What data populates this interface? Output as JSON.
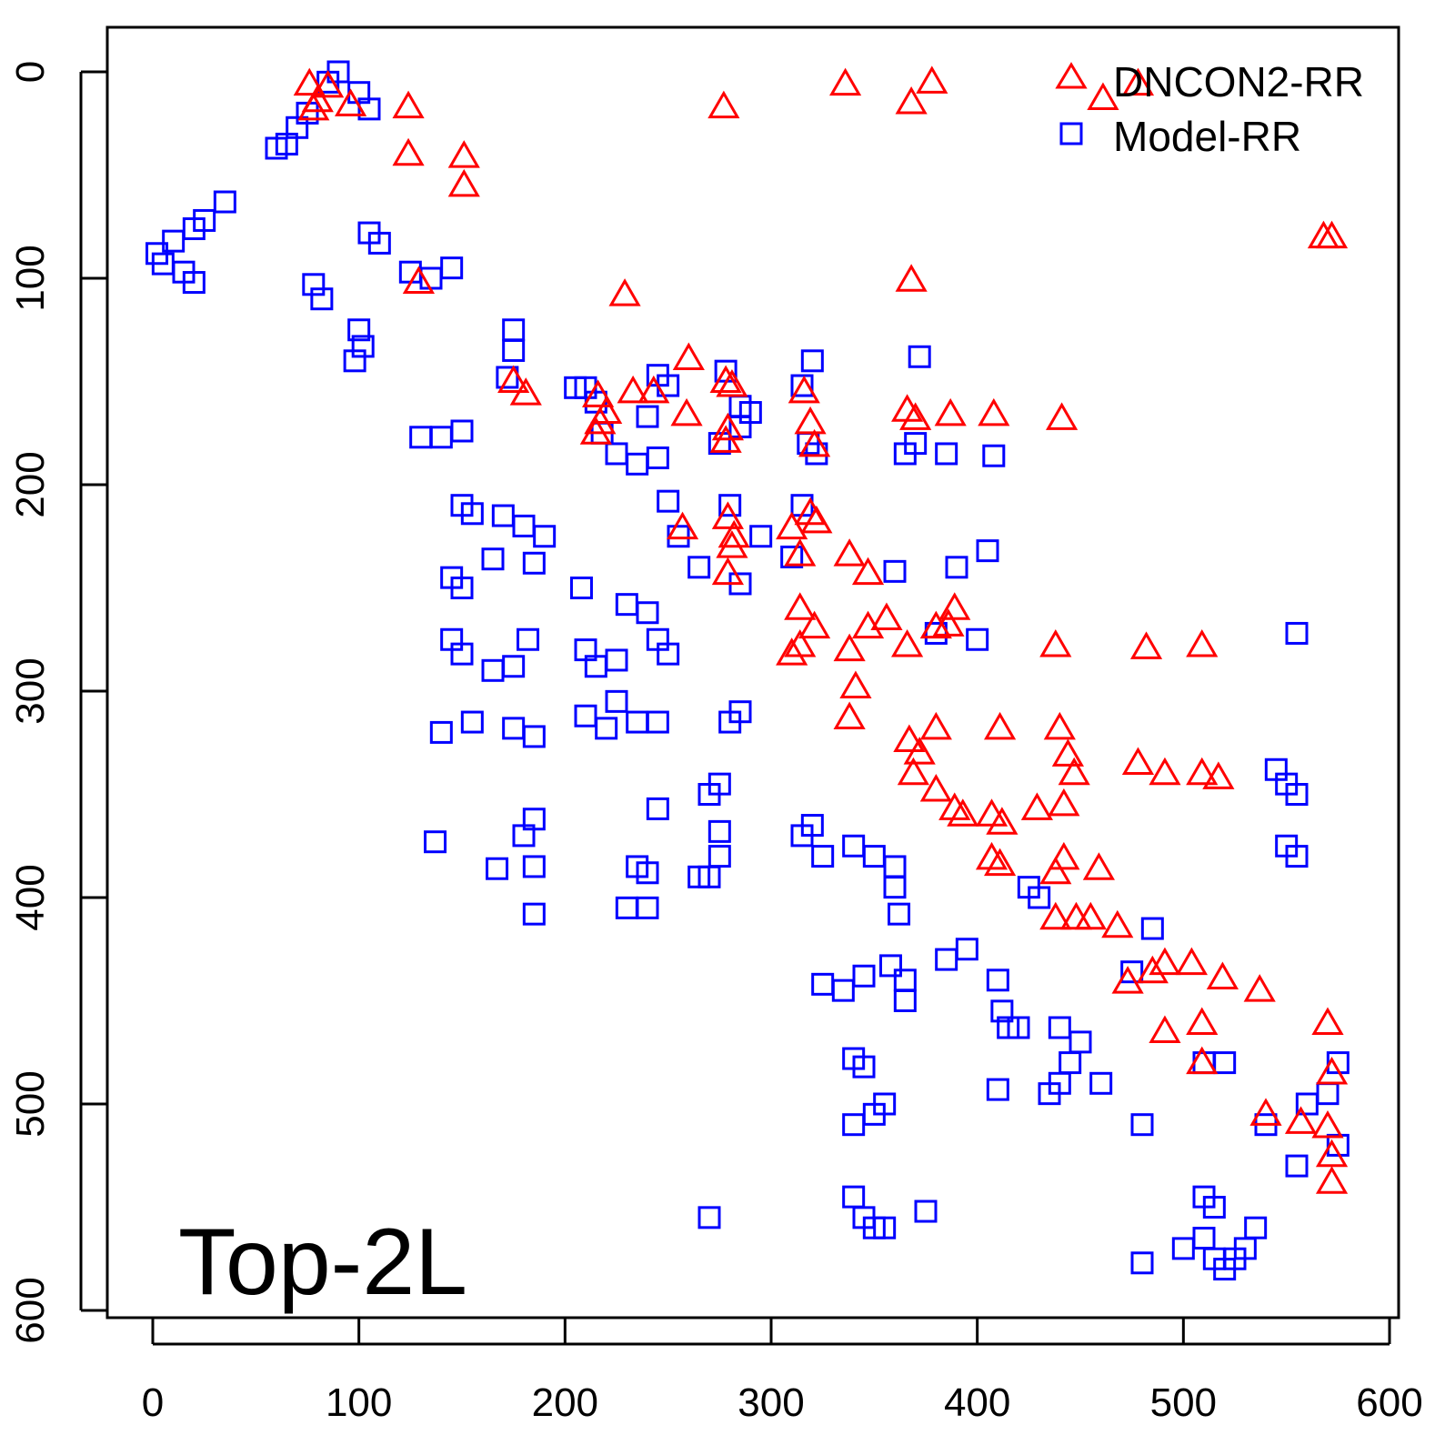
{
  "chart_data": {
    "type": "scatter",
    "title": "",
    "annotation": "Top-2L",
    "xlabel": "",
    "ylabel": "",
    "xlim": [
      -22,
      605
    ],
    "ylim": [
      600,
      -22
    ],
    "y_inverted": true,
    "grid": false,
    "legend_position": "top-right",
    "x_ticks": [
      "0",
      "100",
      "200",
      "300",
      "400",
      "500",
      "600"
    ],
    "y_ticks": [
      "0",
      "100",
      "200",
      "300",
      "400",
      "500",
      "600"
    ],
    "colors": {
      "DNCON2-RR": "#ff0000",
      "Model-RR": "#0000ff"
    },
    "series": [
      {
        "name": "DNCON2-RR",
        "marker": "triangle",
        "points": [
          [
            76,
            6
          ],
          [
            80,
            14
          ],
          [
            85,
            7
          ],
          [
            96,
            16
          ],
          [
            78,
            18
          ],
          [
            124,
            17
          ],
          [
            124,
            40
          ],
          [
            151,
            41
          ],
          [
            151,
            55
          ],
          [
            129,
            102
          ],
          [
            229,
            108
          ],
          [
            277,
            17
          ],
          [
            336,
            6
          ],
          [
            368,
            15
          ],
          [
            378,
            5
          ],
          [
            461,
            13
          ],
          [
            478,
            6
          ],
          [
            572,
            80
          ],
          [
            568,
            80
          ],
          [
            368,
            101
          ],
          [
            175,
            150
          ],
          [
            181,
            156
          ],
          [
            216,
            157
          ],
          [
            217,
            170
          ],
          [
            220,
            165
          ],
          [
            215,
            175
          ],
          [
            233,
            155
          ],
          [
            243,
            155
          ],
          [
            259,
            166
          ],
          [
            260,
            139
          ],
          [
            281,
            152
          ],
          [
            278,
            150
          ],
          [
            279,
            173
          ],
          [
            278,
            179
          ],
          [
            316,
            155
          ],
          [
            319,
            170
          ],
          [
            321,
            181
          ],
          [
            366,
            164
          ],
          [
            370,
            168
          ],
          [
            387,
            166
          ],
          [
            408,
            166
          ],
          [
            441,
            168
          ],
          [
            257,
            221
          ],
          [
            279,
            216
          ],
          [
            281,
            230
          ],
          [
            279,
            243
          ],
          [
            282,
            225
          ],
          [
            310,
            221
          ],
          [
            319,
            214
          ],
          [
            314,
            234
          ],
          [
            322,
            218
          ],
          [
            338,
            234
          ],
          [
            347,
            243
          ],
          [
            314,
            260
          ],
          [
            314,
            278
          ],
          [
            321,
            269
          ],
          [
            310,
            282
          ],
          [
            338,
            280
          ],
          [
            341,
            298
          ],
          [
            338,
            313
          ],
          [
            347,
            269
          ],
          [
            356,
            265
          ],
          [
            366,
            278
          ],
          [
            380,
            269
          ],
          [
            389,
            260
          ],
          [
            386,
            268
          ],
          [
            438,
            278
          ],
          [
            482,
            279
          ],
          [
            509,
            278
          ],
          [
            367,
            324
          ],
          [
            369,
            340
          ],
          [
            372,
            330
          ],
          [
            380,
            318
          ],
          [
            380,
            348
          ],
          [
            389,
            357
          ],
          [
            393,
            360
          ],
          [
            411,
            318
          ],
          [
            407,
            360
          ],
          [
            412,
            364
          ],
          [
            407,
            381
          ],
          [
            411,
            384
          ],
          [
            429,
            357
          ],
          [
            440,
            318
          ],
          [
            444,
            331
          ],
          [
            442,
            355
          ],
          [
            447,
            340
          ],
          [
            442,
            381
          ],
          [
            438,
            388
          ],
          [
            459,
            386
          ],
          [
            438,
            410
          ],
          [
            448,
            410
          ],
          [
            455,
            410
          ],
          [
            468,
            414
          ],
          [
            478,
            335
          ],
          [
            491,
            340
          ],
          [
            509,
            340
          ],
          [
            517,
            342
          ],
          [
            473,
            441
          ],
          [
            485,
            436
          ],
          [
            491,
            432
          ],
          [
            504,
            432
          ],
          [
            519,
            439
          ],
          [
            537,
            445
          ],
          [
            491,
            465
          ],
          [
            509,
            461
          ],
          [
            509,
            480
          ],
          [
            570,
            461
          ],
          [
            572,
            485
          ],
          [
            540,
            505
          ],
          [
            557,
            509
          ],
          [
            570,
            511
          ],
          [
            572,
            525
          ],
          [
            572,
            538
          ]
        ]
      },
      {
        "name": "Model-RR",
        "marker": "square",
        "points": [
          [
            90,
            0
          ],
          [
            85,
            5
          ],
          [
            100,
            10
          ],
          [
            105,
            18
          ],
          [
            75,
            20
          ],
          [
            70,
            27
          ],
          [
            65,
            35
          ],
          [
            60,
            37
          ],
          [
            35,
            63
          ],
          [
            25,
            72
          ],
          [
            20,
            76
          ],
          [
            10,
            82
          ],
          [
            2,
            88
          ],
          [
            5,
            93
          ],
          [
            15,
            97
          ],
          [
            20,
            102
          ],
          [
            105,
            78
          ],
          [
            110,
            83
          ],
          [
            78,
            103
          ],
          [
            82,
            110
          ],
          [
            100,
            125
          ],
          [
            102,
            133
          ],
          [
            98,
            140
          ],
          [
            125,
            97
          ],
          [
            135,
            100
          ],
          [
            145,
            95
          ],
          [
            175,
            125
          ],
          [
            175,
            135
          ],
          [
            172,
            148
          ],
          [
            210,
            153
          ],
          [
            215,
            160
          ],
          [
            218,
            175
          ],
          [
            225,
            185
          ],
          [
            235,
            190
          ],
          [
            245,
            187
          ],
          [
            240,
            167
          ],
          [
            245,
            147
          ],
          [
            250,
            152
          ],
          [
            278,
            145
          ],
          [
            290,
            165
          ],
          [
            285,
            172
          ],
          [
            275,
            180
          ],
          [
            320,
            140
          ],
          [
            315,
            152
          ],
          [
            318,
            180
          ],
          [
            322,
            185
          ],
          [
            365,
            185
          ],
          [
            370,
            180
          ],
          [
            372,
            138
          ],
          [
            385,
            185
          ],
          [
            408,
            186
          ],
          [
            130,
            177
          ],
          [
            140,
            177
          ],
          [
            150,
            174
          ],
          [
            150,
            210
          ],
          [
            155,
            214
          ],
          [
            170,
            215
          ],
          [
            180,
            220
          ],
          [
            190,
            225
          ],
          [
            185,
            238
          ],
          [
            165,
            236
          ],
          [
            145,
            245
          ],
          [
            150,
            250
          ],
          [
            145,
            275
          ],
          [
            150,
            282
          ],
          [
            165,
            290
          ],
          [
            175,
            288
          ],
          [
            182,
            275
          ],
          [
            175,
            318
          ],
          [
            185,
            322
          ],
          [
            155,
            315
          ],
          [
            140,
            320
          ],
          [
            250,
            208
          ],
          [
            255,
            225
          ],
          [
            265,
            240
          ],
          [
            280,
            210
          ],
          [
            285,
            248
          ],
          [
            295,
            225
          ],
          [
            315,
            210
          ],
          [
            310,
            235
          ],
          [
            208,
            250
          ],
          [
            210,
            280
          ],
          [
            215,
            288
          ],
          [
            225,
            285
          ],
          [
            230,
            258
          ],
          [
            240,
            262
          ],
          [
            245,
            275
          ],
          [
            250,
            282
          ],
          [
            210,
            312
          ],
          [
            220,
            318
          ],
          [
            225,
            305
          ],
          [
            235,
            315
          ],
          [
            245,
            315
          ],
          [
            280,
            315
          ],
          [
            285,
            310
          ],
          [
            270,
            350
          ],
          [
            275,
            345
          ],
          [
            245,
            357
          ],
          [
            240,
            388
          ],
          [
            235,
            385
          ],
          [
            230,
            405
          ],
          [
            240,
            405
          ],
          [
            265,
            390
          ],
          [
            275,
            380
          ],
          [
            275,
            368
          ],
          [
            137,
            373
          ],
          [
            167,
            386
          ],
          [
            180,
            370
          ],
          [
            185,
            362
          ],
          [
            185,
            385
          ],
          [
            185,
            408
          ],
          [
            315,
            370
          ],
          [
            320,
            365
          ],
          [
            325,
            380
          ],
          [
            340,
            375
          ],
          [
            350,
            380
          ],
          [
            360,
            385
          ],
          [
            360,
            395
          ],
          [
            362,
            408
          ],
          [
            358,
            433
          ],
          [
            365,
            440
          ],
          [
            365,
            450
          ],
          [
            345,
            438
          ],
          [
            335,
            445
          ],
          [
            325,
            442
          ],
          [
            385,
            430
          ],
          [
            395,
            425
          ],
          [
            400,
            275
          ],
          [
            380,
            272
          ],
          [
            390,
            240
          ],
          [
            405,
            232
          ],
          [
            360,
            242
          ],
          [
            410,
            440
          ],
          [
            412,
            455
          ],
          [
            415,
            463
          ],
          [
            420,
            463
          ],
          [
            410,
            493
          ],
          [
            430,
            400
          ],
          [
            425,
            395
          ],
          [
            440,
            490
          ],
          [
            445,
            480
          ],
          [
            450,
            470
          ],
          [
            435,
            495
          ],
          [
            440,
            463
          ],
          [
            460,
            490
          ],
          [
            475,
            436
          ],
          [
            480,
            510
          ],
          [
            485,
            415
          ],
          [
            510,
            480
          ],
          [
            520,
            480
          ],
          [
            545,
            338
          ],
          [
            550,
            345
          ],
          [
            555,
            350
          ],
          [
            550,
            375
          ],
          [
            555,
            380
          ],
          [
            555,
            272
          ],
          [
            540,
            510
          ],
          [
            560,
            500
          ],
          [
            570,
            495
          ],
          [
            575,
            480
          ],
          [
            575,
            520
          ],
          [
            555,
            530
          ],
          [
            500,
            570
          ],
          [
            510,
            565
          ],
          [
            515,
            575
          ],
          [
            520,
            580
          ],
          [
            525,
            575
          ],
          [
            530,
            570
          ],
          [
            535,
            560
          ],
          [
            510,
            545
          ],
          [
            515,
            550
          ],
          [
            480,
            577
          ],
          [
            340,
            545
          ],
          [
            345,
            555
          ],
          [
            350,
            560
          ],
          [
            355,
            560
          ],
          [
            375,
            552
          ],
          [
            270,
            555
          ],
          [
            340,
            510
          ],
          [
            350,
            505
          ],
          [
            355,
            500
          ],
          [
            340,
            478
          ],
          [
            345,
            482
          ],
          [
            270,
            390
          ],
          [
            285,
            162
          ],
          [
            205,
            153
          ]
        ]
      }
    ]
  }
}
